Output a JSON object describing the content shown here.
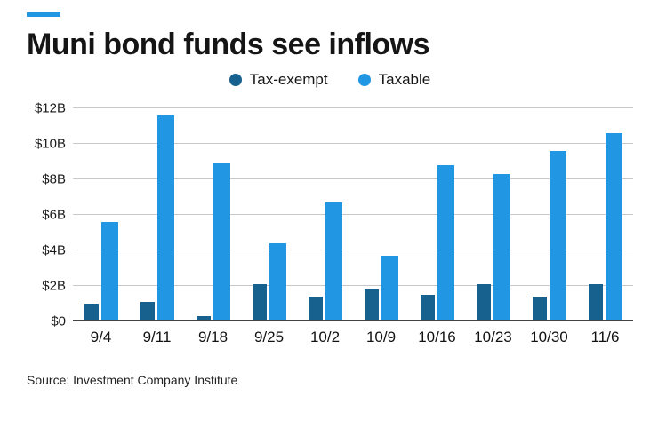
{
  "page": {
    "source": "Source: Investment Company Institute"
  },
  "chart_data": {
    "type": "bar",
    "title": "Muni bond funds see inflows",
    "categories": [
      "9/4",
      "9/11",
      "9/18",
      "9/25",
      "10/2",
      "10/9",
      "10/16",
      "10/23",
      "10/30",
      "11/6"
    ],
    "series": [
      {
        "name": "Tax-exempt",
        "color": "#17618f",
        "values": [
          1.0,
          1.1,
          0.3,
          2.1,
          1.4,
          1.8,
          1.5,
          2.1,
          1.4,
          2.1
        ]
      },
      {
        "name": "Taxable",
        "color": "#2196e3",
        "values": [
          5.6,
          11.6,
          8.9,
          4.4,
          6.7,
          3.7,
          8.8,
          8.3,
          9.6,
          10.6
        ]
      }
    ],
    "ylim": [
      0,
      12
    ],
    "yticks": [
      0,
      2,
      4,
      6,
      8,
      10,
      12
    ],
    "ytick_labels": [
      "$0",
      "$2B",
      "$4B",
      "$6B",
      "$8B",
      "$10B",
      "$12B"
    ],
    "grid": true,
    "legend_position": "top-center",
    "accent_color": "#2196e3"
  }
}
